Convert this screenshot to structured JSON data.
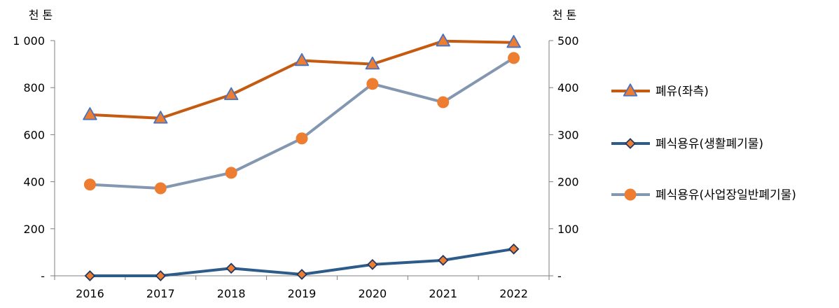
{
  "chart_data": {
    "type": "line",
    "categories": [
      "2016",
      "2017",
      "2018",
      "2019",
      "2020",
      "2021",
      "2022"
    ],
    "left_axis": {
      "unit": "천 톤",
      "range": [
        0,
        1000
      ],
      "ticks": [
        0,
        200,
        400,
        600,
        800,
        1000
      ],
      "tick_labels": [
        "-",
        "200",
        "400",
        "600",
        "800",
        "1 000"
      ]
    },
    "right_axis": {
      "unit": "천 톤",
      "range": [
        0,
        500
      ],
      "ticks": [
        0,
        100,
        200,
        300,
        400,
        500
      ],
      "tick_labels": [
        "-",
        "100",
        "200",
        "300",
        "400",
        "500"
      ]
    },
    "series": [
      {
        "name": "폐유(좌측)",
        "axis": "left",
        "values": [
          685,
          670,
          770,
          915,
          900,
          998,
          992
        ],
        "line_color": "#C55A11",
        "marker": "triangle",
        "marker_fill": "#ED7D31",
        "marker_stroke": "#4472C4"
      },
      {
        "name": "폐식용유(생활폐기물)",
        "axis": "right",
        "values": [
          0,
          0,
          16,
          3,
          24,
          33,
          57
        ],
        "line_color": "#2E5C8A",
        "marker": "diamond",
        "marker_fill": "#ED7D31",
        "marker_stroke": "#1F3864"
      },
      {
        "name": "폐식용유(사업장일반폐기물)",
        "axis": "right",
        "values": [
          194,
          186,
          219,
          292,
          408,
          369,
          463
        ],
        "line_color": "#8497B0",
        "marker": "circle",
        "marker_fill": "#ED7D31",
        "marker_stroke": "#ED7D31"
      }
    ],
    "grid": false,
    "legend_position": "right"
  }
}
